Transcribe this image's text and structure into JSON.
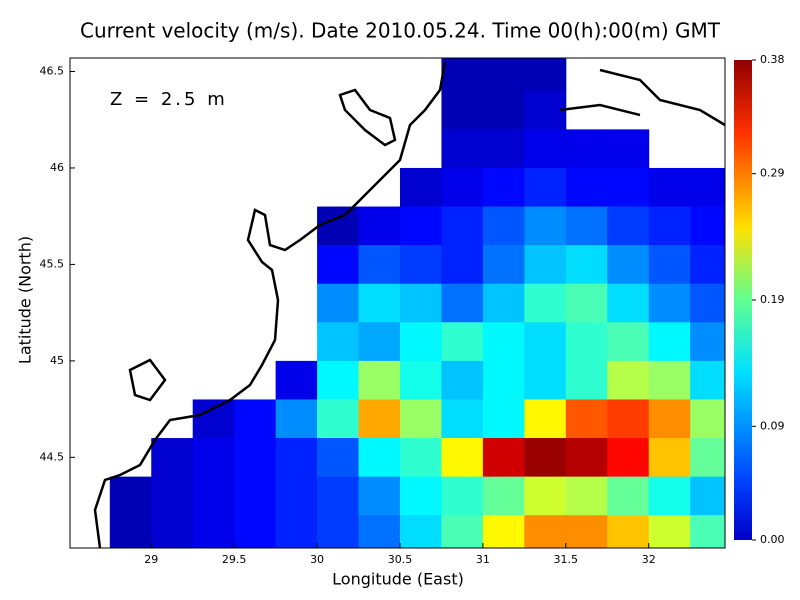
{
  "chart_data": {
    "type": "heatmap",
    "title": "Current velocity (m/s). Date 2010.05.24. Time 00(h):00(m) GMT",
    "annotation": "Z = 2.5 m",
    "x_label": "Longitude (East)",
    "y_label": "Latitude (North)",
    "x": [
      28.625,
      28.875,
      29.125,
      29.375,
      29.625,
      29.875,
      30.125,
      30.375,
      30.625,
      30.875,
      31.125,
      31.375,
      31.625,
      31.875,
      32.125,
      32.375
    ],
    "y": [
      46.5,
      46.3,
      46.1,
      45.9,
      45.7,
      45.5,
      45.3,
      45.1,
      44.9,
      44.7,
      44.5,
      44.3,
      44.1
    ],
    "values": [
      [
        null,
        null,
        null,
        null,
        null,
        null,
        null,
        null,
        null,
        0.02,
        0.02,
        0.02,
        null,
        null,
        null,
        null
      ],
      [
        null,
        null,
        null,
        null,
        null,
        null,
        null,
        null,
        null,
        0.02,
        0.02,
        0.03,
        null,
        null,
        null,
        null
      ],
      [
        null,
        null,
        null,
        null,
        null,
        null,
        null,
        null,
        null,
        0.03,
        0.03,
        0.04,
        0.04,
        0.04,
        null,
        null
      ],
      [
        null,
        null,
        null,
        null,
        null,
        null,
        null,
        null,
        0.03,
        0.04,
        0.05,
        0.06,
        0.05,
        0.05,
        0.04,
        0.04
      ],
      [
        null,
        null,
        null,
        null,
        null,
        null,
        0.02,
        0.04,
        0.05,
        0.06,
        0.08,
        0.1,
        0.09,
        0.07,
        0.06,
        0.05
      ],
      [
        null,
        null,
        null,
        null,
        null,
        null,
        0.05,
        0.08,
        0.07,
        0.06,
        0.09,
        0.12,
        0.13,
        0.1,
        0.08,
        0.06
      ],
      [
        null,
        null,
        null,
        null,
        null,
        null,
        0.1,
        0.13,
        0.12,
        0.09,
        0.12,
        0.16,
        0.17,
        0.13,
        0.1,
        0.08
      ],
      [
        null,
        null,
        null,
        null,
        null,
        null,
        0.12,
        0.11,
        0.14,
        0.16,
        0.14,
        0.13,
        0.16,
        0.17,
        0.14,
        0.1
      ],
      [
        null,
        null,
        null,
        null,
        null,
        0.04,
        0.14,
        0.2,
        0.15,
        0.12,
        0.14,
        0.13,
        0.16,
        0.21,
        0.2,
        0.13
      ],
      [
        null,
        null,
        null,
        0.03,
        0.05,
        0.1,
        0.16,
        0.27,
        0.2,
        0.13,
        0.14,
        0.24,
        0.3,
        0.31,
        0.28,
        0.2
      ],
      [
        null,
        null,
        0.03,
        0.04,
        0.05,
        0.06,
        0.08,
        0.14,
        0.16,
        0.24,
        0.35,
        0.37,
        0.36,
        0.33,
        0.26,
        0.18
      ],
      [
        null,
        0.02,
        0.03,
        0.04,
        0.05,
        0.06,
        0.07,
        0.1,
        0.14,
        0.16,
        0.18,
        0.22,
        0.21,
        0.18,
        0.15,
        0.12
      ],
      [
        null,
        0.02,
        0.03,
        0.04,
        0.05,
        0.06,
        0.07,
        0.09,
        0.13,
        0.17,
        0.24,
        0.28,
        0.28,
        0.26,
        0.22,
        0.17
      ]
    ],
    "xlim": [
      28.51,
      32.46
    ],
    "ylim": [
      44.03,
      46.57
    ],
    "xticks": [
      29,
      29.5,
      30,
      30.5,
      31,
      31.5,
      32
    ],
    "yticks": [
      44.5,
      45,
      45.5,
      46,
      46.5
    ],
    "clim": [
      0,
      0.38
    ],
    "cticks": [
      {
        "value": 0,
        "label": "0.00"
      },
      0.09,
      0.19,
      0.29,
      0.38
    ],
    "colormap": "jet"
  }
}
